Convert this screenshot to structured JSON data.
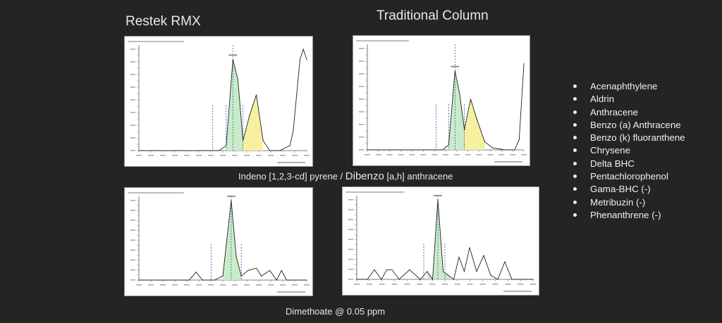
{
  "headings": {
    "left": "Restek RMX",
    "right": "Traditional Column"
  },
  "captions": {
    "middle_a": "Indeno [1,2,3-cd] pyrene / ",
    "middle_b": "Dibenzo",
    "middle_c": " [a,h] anthracene",
    "bottom": "Dimethoate @ 0.05 ppm"
  },
  "compounds": [
    "Acenaphthylene",
    "Aldrin",
    "Anthracene",
    "Benzo (a) Anthracene",
    "Benzo (k) fluoranthene",
    "Chrysene",
    "Delta BHC",
    "Pentachlorophenol",
    "Gama-BHC (-)",
    "Metribuzin (-)",
    "Phenanthrene (-)"
  ],
  "colors": {
    "background": "#242424",
    "trace": "#222222",
    "green_fill": "#c8ecc8",
    "yellow_fill": "#f7f0a0",
    "marker": "#2a3fb8"
  },
  "chart_data": [
    {
      "type": "line",
      "panel": "restek-indeno",
      "xlabel": "Acquisition Time (min)",
      "x": [
        0.0,
        0.2,
        0.4,
        0.48,
        0.52,
        0.56,
        0.59,
        0.62,
        0.66,
        0.7,
        0.74,
        0.78,
        0.84,
        0.9,
        0.92,
        0.94,
        0.96,
        0.98,
        1.0
      ],
      "y": [
        0.0,
        0.0,
        0.0,
        0.0,
        0.05,
        0.9,
        0.7,
        0.1,
        0.35,
        0.55,
        0.1,
        0.0,
        0.0,
        0.05,
        0.2,
        0.55,
        0.9,
        1.0,
        0.9
      ],
      "regions": [
        {
          "from": 0.52,
          "to": 0.62,
          "color": "green"
        },
        {
          "from": 0.62,
          "to": 0.74,
          "color": "yellow"
        }
      ],
      "markers": [
        0.44,
        0.52,
        0.62
      ]
    },
    {
      "type": "line",
      "panel": "traditional-indeno",
      "xlabel": "Acquisition Time (min)",
      "x": [
        0.0,
        0.2,
        0.4,
        0.48,
        0.52,
        0.56,
        0.59,
        0.62,
        0.66,
        0.7,
        0.75,
        0.8,
        0.88,
        0.94,
        0.97,
        1.0
      ],
      "y": [
        0.0,
        0.0,
        0.0,
        0.0,
        0.05,
        0.78,
        0.55,
        0.2,
        0.5,
        0.3,
        0.08,
        0.02,
        0.0,
        0.0,
        0.1,
        0.85
      ],
      "regions": [
        {
          "from": 0.52,
          "to": 0.62,
          "color": "green"
        },
        {
          "from": 0.62,
          "to": 0.75,
          "color": "yellow"
        }
      ],
      "markers": [
        0.44,
        0.52,
        0.62
      ]
    },
    {
      "type": "line",
      "panel": "restek-dimethoate",
      "xlabel": "Acquisition Time (min)",
      "x": [
        0.0,
        0.15,
        0.3,
        0.34,
        0.38,
        0.45,
        0.5,
        0.55,
        0.58,
        0.61,
        0.65,
        0.7,
        0.73,
        0.78,
        0.82,
        0.85,
        0.88,
        0.9,
        1.0
      ],
      "y": [
        0.0,
        0.0,
        0.0,
        0.1,
        0.0,
        0.0,
        0.05,
        1.0,
        0.3,
        0.05,
        0.12,
        0.15,
        0.05,
        0.12,
        0.0,
        0.12,
        0.0,
        0.0,
        0.0
      ],
      "regions": [
        {
          "from": 0.5,
          "to": 0.61,
          "color": "green"
        }
      ],
      "markers": [
        0.43,
        0.61
      ]
    },
    {
      "type": "line",
      "panel": "traditional-dimethoate",
      "xlabel": "Acquisition Time (min)",
      "x": [
        0.0,
        0.06,
        0.1,
        0.14,
        0.17,
        0.2,
        0.24,
        0.3,
        0.36,
        0.4,
        0.43,
        0.46,
        0.49,
        0.55,
        0.58,
        0.61,
        0.64,
        0.68,
        0.72,
        0.76,
        0.8,
        0.84,
        0.88,
        0.92,
        1.0
      ],
      "y": [
        0.0,
        0.0,
        0.12,
        0.0,
        0.12,
        0.12,
        0.0,
        0.12,
        0.0,
        0.1,
        0.0,
        1.0,
        0.1,
        0.0,
        0.28,
        0.1,
        0.4,
        0.1,
        0.3,
        0.05,
        0.0,
        0.22,
        0.0,
        0.0,
        0.0
      ],
      "regions": [
        {
          "from": 0.4,
          "to": 0.55,
          "color": "green"
        }
      ],
      "markers": [
        0.38,
        0.5
      ]
    }
  ]
}
